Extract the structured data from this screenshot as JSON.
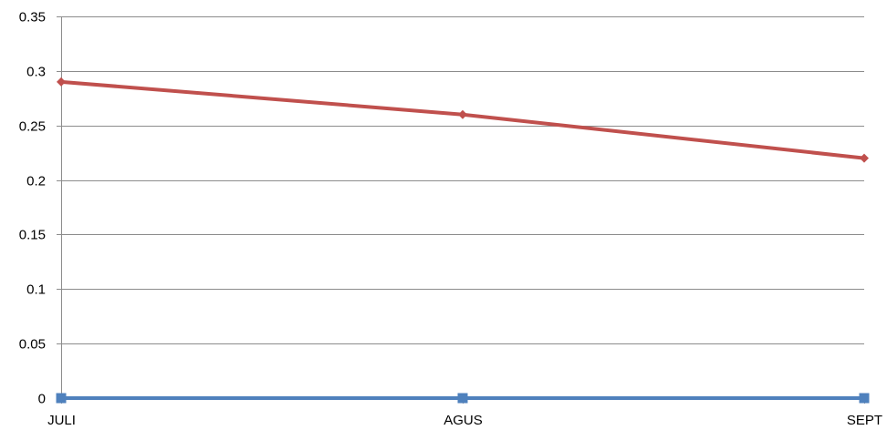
{
  "chart_data": {
    "type": "line",
    "title": "",
    "xlabel": "",
    "ylabel": "",
    "categories": [
      "JULI",
      "AGUS",
      "SEPT"
    ],
    "ylim": [
      0,
      0.35
    ],
    "yticks": [
      0,
      0.05,
      0.1,
      0.15,
      0.2,
      0.25,
      0.3,
      0.35
    ],
    "ytick_labels": [
      "0",
      "0.05",
      "0.1",
      "0.15",
      "0.2",
      "0.25",
      "0.3",
      "0.35"
    ],
    "grid": true,
    "legend": "none",
    "series": [
      {
        "values": [
          0.29,
          0.26,
          0.22
        ],
        "color": "#c0504d",
        "marker": "diamond"
      },
      {
        "values": [
          0,
          0,
          0
        ],
        "color": "#4f81bd",
        "marker": "square"
      }
    ]
  }
}
